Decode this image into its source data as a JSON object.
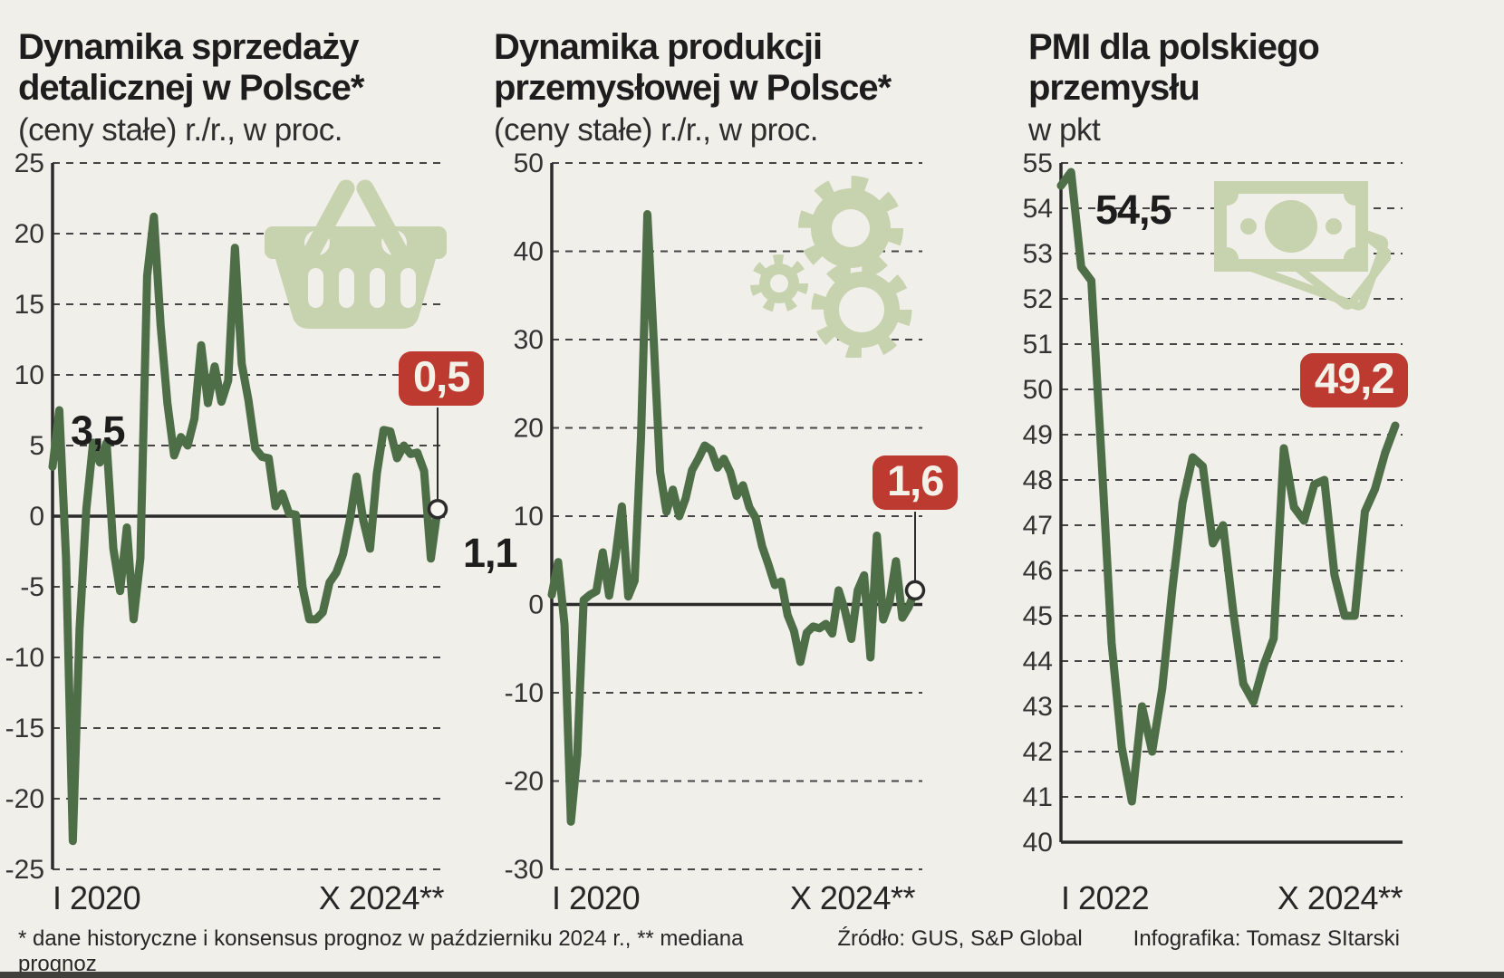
{
  "page": {
    "footnote": "* dane historyczne i konsensus prognoz w październiku 2024 r., ** mediana prognoz",
    "source": "Źródło: GUS, S&P Global",
    "credit": "Infografika: Tomasz SItarski"
  },
  "colors": {
    "background": "#f0efe9",
    "line": "#4e6e47",
    "icon": "#c7d2ae",
    "badge": "#bd3a31",
    "badge_text": "#f4f1e9",
    "axis": "#2b2b2b",
    "grid": "#454545",
    "marker_fill": "#f7f6f0"
  },
  "chart_data": [
    {
      "type": "line",
      "title": "Dynamika sprzedaży detalicznej w Polsce*",
      "subtitle": "(ceny stałe) r./r., w proc.",
      "icon": "shopping-basket",
      "x_axis": {
        "start": "I 2020",
        "end": "X 2024**"
      },
      "ylim": [
        -25,
        25
      ],
      "yticks": [
        25,
        20,
        15,
        10,
        5,
        0,
        -5,
        -10,
        -15,
        -20,
        -25
      ],
      "baseline": 0,
      "grid": true,
      "start_label": "3,5",
      "end_label": "0,5",
      "values": [
        3.5,
        7.5,
        -3.0,
        -23.0,
        -8.0,
        0.5,
        5.2,
        3.8,
        5.2,
        -2.3,
        -5.3,
        -0.8,
        -7.3,
        -3.0,
        17.0,
        21.2,
        13.5,
        8.0,
        4.3,
        5.6,
        5.0,
        6.9,
        12.1,
        8.0,
        10.6,
        8.1,
        9.6,
        19.0,
        10.8,
        8.2,
        4.8,
        4.2,
        4.1,
        0.7,
        1.6,
        0.2,
        0.1,
        -5.0,
        -7.3,
        -7.3,
        -6.8,
        -4.7,
        -4.0,
        -2.7,
        -0.3,
        2.8,
        -0.3,
        -2.3,
        3.0,
        6.1,
        6.0,
        4.1,
        5.0,
        4.4,
        4.5,
        3.2,
        -3.0,
        0.5
      ]
    },
    {
      "type": "line",
      "title": "Dynamika produkcji przemysłowej w Polsce*",
      "subtitle": "(ceny stałe) r./r., w proc.",
      "icon": "gears",
      "x_axis": {
        "start": "I 2020",
        "end": "X 2024**"
      },
      "ylim": [
        -30,
        50
      ],
      "yticks": [
        50,
        40,
        30,
        20,
        10,
        0,
        -10,
        -20,
        -30
      ],
      "baseline": 0,
      "grid": true,
      "start_label": "1,1",
      "end_label": "1,6",
      "values": [
        1.1,
        4.8,
        -2.3,
        -24.6,
        -17.0,
        0.5,
        1.1,
        1.5,
        5.9,
        1.0,
        5.4,
        11.1,
        0.9,
        2.7,
        18.9,
        44.2,
        29.8,
        15.0,
        10.5,
        13.0,
        10.0,
        12.0,
        15.2,
        16.5,
        18.0,
        17.5,
        15.5,
        16.5,
        15.0,
        12.3,
        13.5,
        11.0,
        9.8,
        6.6,
        4.5,
        2.2,
        2.6,
        -1.2,
        -3.0,
        -6.5,
        -3.2,
        -2.5,
        -2.7,
        -2.2,
        -3.3,
        1.6,
        -0.7,
        -3.9,
        1.6,
        3.3,
        -6.0,
        7.8,
        -1.7,
        0.3,
        4.9,
        -1.5,
        -0.3,
        1.6
      ]
    },
    {
      "type": "line",
      "title": "PMI dla polskiego przemysłu",
      "subtitle": "w pkt",
      "icon": "banknotes",
      "x_axis": {
        "start": "I 2022",
        "end": "X 2024**"
      },
      "ylim": [
        40,
        55
      ],
      "yticks": [
        55,
        54,
        53,
        52,
        51,
        50,
        49,
        48,
        47,
        46,
        45,
        44,
        43,
        42,
        41,
        40
      ],
      "baseline": 40,
      "grid": true,
      "start_label": "54,5",
      "end_label": "49,2",
      "values": [
        54.5,
        54.8,
        52.7,
        52.4,
        48.5,
        44.4,
        42.1,
        40.9,
        43.0,
        42.0,
        43.4,
        45.6,
        47.5,
        48.5,
        48.3,
        46.6,
        47.0,
        45.1,
        43.5,
        43.1,
        43.9,
        44.5,
        48.7,
        47.4,
        47.1,
        47.9,
        48.0,
        45.9,
        45.0,
        45.0,
        47.3,
        47.8,
        48.6,
        49.2
      ]
    }
  ]
}
